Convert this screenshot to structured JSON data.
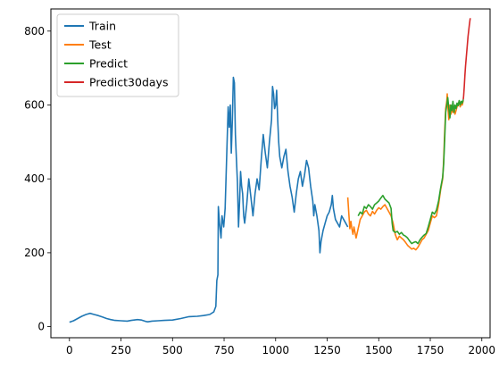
{
  "chart_data": {
    "type": "line",
    "title": "",
    "xlabel": "",
    "ylabel": "",
    "xlim": [
      -90,
      2040
    ],
    "ylim": [
      -30,
      860
    ],
    "xticks": [
      0,
      250,
      500,
      750,
      1000,
      1250,
      1500,
      1750,
      2000
    ],
    "xtick_labels": [
      "0",
      "250",
      "500",
      "750",
      "1000",
      "1250",
      "1500",
      "1750",
      "2000"
    ],
    "yticks": [
      0,
      200,
      400,
      600,
      800
    ],
    "ytick_labels": [
      "0",
      "200",
      "400",
      "600",
      "800"
    ],
    "grid": false,
    "legend": "top-left",
    "series": [
      {
        "name": "Train",
        "color": "#1f77b4",
        "points": [
          [
            0,
            12
          ],
          [
            20,
            16
          ],
          [
            40,
            22
          ],
          [
            60,
            28
          ],
          [
            80,
            33
          ],
          [
            100,
            36
          ],
          [
            120,
            33
          ],
          [
            140,
            30
          ],
          [
            160,
            26
          ],
          [
            180,
            22
          ],
          [
            200,
            19
          ],
          [
            220,
            17
          ],
          [
            250,
            16
          ],
          [
            280,
            15
          ],
          [
            300,
            17
          ],
          [
            330,
            19
          ],
          [
            350,
            18
          ],
          [
            370,
            14
          ],
          [
            380,
            13
          ],
          [
            400,
            15
          ],
          [
            430,
            16
          ],
          [
            460,
            17
          ],
          [
            500,
            18
          ],
          [
            540,
            22
          ],
          [
            580,
            27
          ],
          [
            620,
            28
          ],
          [
            650,
            30
          ],
          [
            680,
            33
          ],
          [
            700,
            40
          ],
          [
            710,
            55
          ],
          [
            715,
            125
          ],
          [
            720,
            140
          ],
          [
            722,
            325
          ],
          [
            728,
            280
          ],
          [
            735,
            240
          ],
          [
            740,
            300
          ],
          [
            748,
            270
          ],
          [
            755,
            320
          ],
          [
            762,
            450
          ],
          [
            770,
            595
          ],
          [
            775,
            540
          ],
          [
            780,
            600
          ],
          [
            785,
            470
          ],
          [
            790,
            560
          ],
          [
            795,
            675
          ],
          [
            800,
            660
          ],
          [
            805,
            520
          ],
          [
            810,
            450
          ],
          [
            815,
            390
          ],
          [
            820,
            270
          ],
          [
            825,
            340
          ],
          [
            830,
            420
          ],
          [
            835,
            380
          ],
          [
            840,
            360
          ],
          [
            845,
            300
          ],
          [
            850,
            280
          ],
          [
            860,
            330
          ],
          [
            870,
            400
          ],
          [
            880,
            350
          ],
          [
            890,
            300
          ],
          [
            900,
            360
          ],
          [
            910,
            400
          ],
          [
            920,
            370
          ],
          [
            930,
            450
          ],
          [
            940,
            520
          ],
          [
            950,
            470
          ],
          [
            960,
            430
          ],
          [
            970,
            500
          ],
          [
            980,
            560
          ],
          [
            985,
            650
          ],
          [
            990,
            630
          ],
          [
            995,
            590
          ],
          [
            1000,
            600
          ],
          [
            1005,
            640
          ],
          [
            1010,
            560
          ],
          [
            1015,
            500
          ],
          [
            1020,
            460
          ],
          [
            1030,
            430
          ],
          [
            1040,
            460
          ],
          [
            1050,
            480
          ],
          [
            1060,
            420
          ],
          [
            1070,
            380
          ],
          [
            1080,
            350
          ],
          [
            1090,
            310
          ],
          [
            1100,
            360
          ],
          [
            1110,
            400
          ],
          [
            1120,
            420
          ],
          [
            1130,
            380
          ],
          [
            1140,
            410
          ],
          [
            1150,
            450
          ],
          [
            1160,
            430
          ],
          [
            1170,
            380
          ],
          [
            1180,
            340
          ],
          [
            1185,
            300
          ],
          [
            1190,
            330
          ],
          [
            1200,
            300
          ],
          [
            1210,
            260
          ],
          [
            1215,
            200
          ],
          [
            1220,
            230
          ],
          [
            1230,
            260
          ],
          [
            1240,
            280
          ],
          [
            1250,
            300
          ],
          [
            1260,
            310
          ],
          [
            1270,
            330
          ],
          [
            1275,
            355
          ],
          [
            1280,
            320
          ],
          [
            1290,
            290
          ],
          [
            1300,
            280
          ],
          [
            1310,
            270
          ],
          [
            1320,
            300
          ],
          [
            1330,
            290
          ],
          [
            1340,
            280
          ],
          [
            1350,
            270
          ]
        ]
      },
      {
        "name": "Test",
        "color": "#ff7f0e",
        "points": [
          [
            1350,
            350
          ],
          [
            1355,
            305
          ],
          [
            1360,
            265
          ],
          [
            1365,
            285
          ],
          [
            1370,
            265
          ],
          [
            1375,
            250
          ],
          [
            1380,
            270
          ],
          [
            1390,
            240
          ],
          [
            1400,
            265
          ],
          [
            1410,
            290
          ],
          [
            1420,
            300
          ],
          [
            1430,
            310
          ],
          [
            1440,
            315
          ],
          [
            1450,
            305
          ],
          [
            1460,
            300
          ],
          [
            1470,
            312
          ],
          [
            1480,
            305
          ],
          [
            1490,
            315
          ],
          [
            1500,
            322
          ],
          [
            1510,
            318
          ],
          [
            1520,
            325
          ],
          [
            1530,
            330
          ],
          [
            1540,
            320
          ],
          [
            1550,
            310
          ],
          [
            1560,
            300
          ],
          [
            1570,
            280
          ],
          [
            1580,
            250
          ],
          [
            1590,
            235
          ],
          [
            1600,
            245
          ],
          [
            1610,
            240
          ],
          [
            1620,
            235
          ],
          [
            1630,
            228
          ],
          [
            1640,
            220
          ],
          [
            1650,
            215
          ],
          [
            1660,
            210
          ],
          [
            1670,
            212
          ],
          [
            1680,
            208
          ],
          [
            1690,
            215
          ],
          [
            1700,
            225
          ],
          [
            1710,
            235
          ],
          [
            1720,
            240
          ],
          [
            1730,
            250
          ],
          [
            1740,
            260
          ],
          [
            1750,
            280
          ],
          [
            1760,
            300
          ],
          [
            1770,
            295
          ],
          [
            1780,
            300
          ],
          [
            1790,
            330
          ],
          [
            1800,
            370
          ],
          [
            1810,
            400
          ],
          [
            1815,
            450
          ],
          [
            1820,
            530
          ],
          [
            1825,
            590
          ],
          [
            1830,
            610
          ],
          [
            1832,
            630
          ],
          [
            1835,
            600
          ],
          [
            1840,
            560
          ],
          [
            1845,
            600
          ],
          [
            1850,
            575
          ],
          [
            1855,
            590
          ],
          [
            1860,
            580
          ],
          [
            1865,
            595
          ],
          [
            1870,
            575
          ],
          [
            1875,
            585
          ],
          [
            1880,
            595
          ],
          [
            1885,
            600
          ],
          [
            1890,
            610
          ],
          [
            1895,
            595
          ],
          [
            1900,
            605
          ],
          [
            1905,
            600
          ],
          [
            1910,
            612
          ]
        ]
      },
      {
        "name": "Predict",
        "color": "#2ca02c",
        "points": [
          [
            1400,
            300
          ],
          [
            1410,
            310
          ],
          [
            1420,
            305
          ],
          [
            1430,
            325
          ],
          [
            1440,
            320
          ],
          [
            1450,
            330
          ],
          [
            1460,
            325
          ],
          [
            1470,
            318
          ],
          [
            1480,
            330
          ],
          [
            1490,
            335
          ],
          [
            1500,
            340
          ],
          [
            1510,
            348
          ],
          [
            1520,
            355
          ],
          [
            1530,
            345
          ],
          [
            1540,
            340
          ],
          [
            1550,
            335
          ],
          [
            1560,
            320
          ],
          [
            1565,
            280
          ],
          [
            1570,
            260
          ],
          [
            1580,
            255
          ],
          [
            1590,
            258
          ],
          [
            1600,
            250
          ],
          [
            1610,
            255
          ],
          [
            1620,
            248
          ],
          [
            1630,
            245
          ],
          [
            1640,
            240
          ],
          [
            1650,
            232
          ],
          [
            1660,
            225
          ],
          [
            1670,
            228
          ],
          [
            1680,
            230
          ],
          [
            1690,
            225
          ],
          [
            1700,
            235
          ],
          [
            1710,
            242
          ],
          [
            1720,
            248
          ],
          [
            1730,
            252
          ],
          [
            1740,
            270
          ],
          [
            1750,
            290
          ],
          [
            1760,
            310
          ],
          [
            1770,
            305
          ],
          [
            1780,
            315
          ],
          [
            1790,
            340
          ],
          [
            1800,
            375
          ],
          [
            1810,
            405
          ],
          [
            1815,
            440
          ],
          [
            1820,
            510
          ],
          [
            1825,
            580
          ],
          [
            1830,
            600
          ],
          [
            1835,
            620
          ],
          [
            1840,
            590
          ],
          [
            1845,
            565
          ],
          [
            1850,
            600
          ],
          [
            1855,
            585
          ],
          [
            1860,
            610
          ],
          [
            1865,
            580
          ],
          [
            1870,
            600
          ],
          [
            1875,
            590
          ],
          [
            1880,
            605
          ],
          [
            1885,
            598
          ],
          [
            1890,
            612
          ],
          [
            1895,
            600
          ],
          [
            1900,
            610
          ],
          [
            1905,
            605
          ],
          [
            1910,
            615
          ]
        ]
      },
      {
        "name": "Predict30days",
        "color": "#d62728",
        "points": [
          [
            1910,
            615
          ],
          [
            1912,
            625
          ],
          [
            1915,
            650
          ],
          [
            1918,
            680
          ],
          [
            1921,
            705
          ],
          [
            1924,
            725
          ],
          [
            1927,
            745
          ],
          [
            1930,
            765
          ],
          [
            1933,
            785
          ],
          [
            1936,
            800
          ],
          [
            1939,
            815
          ],
          [
            1942,
            828
          ],
          [
            1944,
            835
          ]
        ]
      }
    ]
  }
}
